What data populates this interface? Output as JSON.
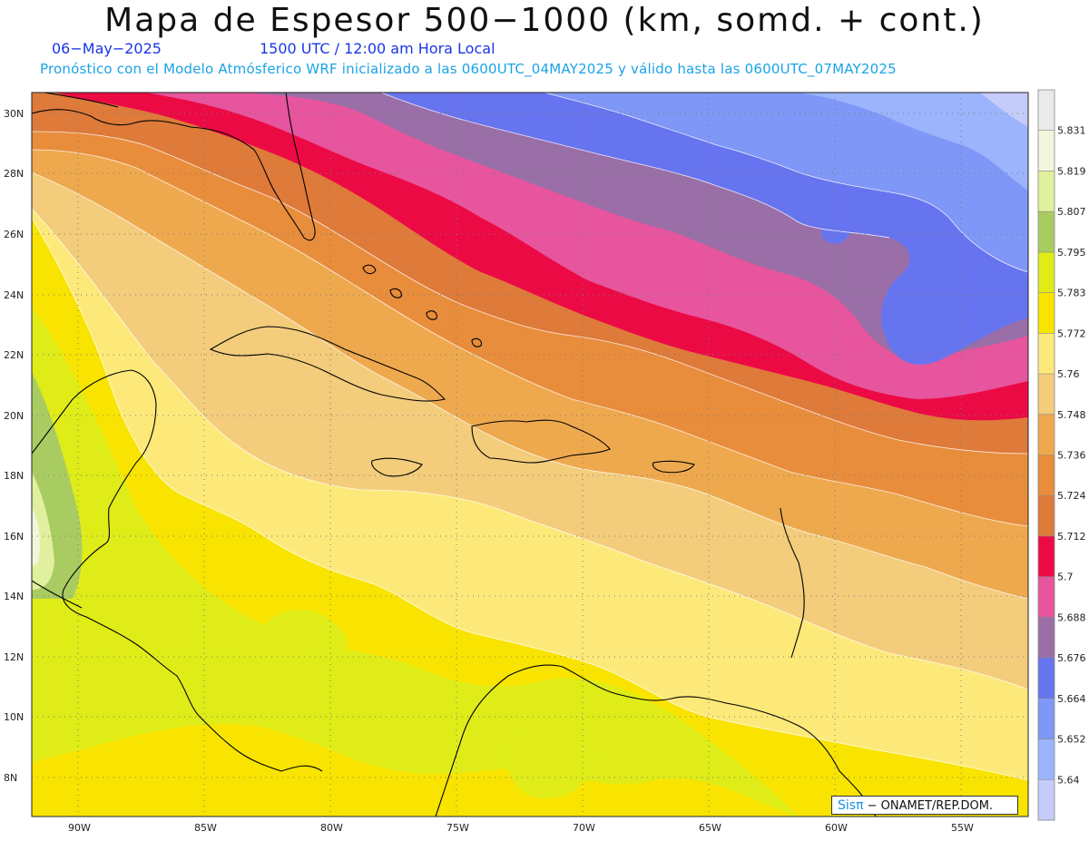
{
  "title": "Mapa de Espesor 500−1000 (km, somd. + cont.)",
  "date": "06−May−2025",
  "time": "1500 UTC / 12:00 am Hora Local",
  "model_info": "Pronóstico con el Modelo Atmósferico WRF inicializado a las 0600UTC_04MAY2025 y válido hasta las  0600UTC_07MAY2025",
  "credit": {
    "brand": "Sisπ",
    "org": "− ONAMET/REP.DOM."
  },
  "lat_labels": [
    "30N",
    "28N",
    "26N",
    "24N",
    "22N",
    "20N",
    "18N",
    "16N",
    "14N",
    "12N",
    "10N",
    "8N"
  ],
  "lon_labels": [
    "90W",
    "85W",
    "80W",
    "75W",
    "70W",
    "65W",
    "60W",
    "55W"
  ],
  "legend": {
    "labels": [
      "5.831",
      "5.819",
      "5.807",
      "5.795",
      "5.783",
      "5.772",
      "5.76",
      "5.748",
      "5.736",
      "5.724",
      "5.712",
      "5.7",
      "5.688",
      "5.676",
      "5.664",
      "5.652",
      "5.64"
    ],
    "colors": [
      "#eaeaea",
      "#f1f6dc",
      "#e0f09e",
      "#a9cc62",
      "#dfec18",
      "#f8e400",
      "#fde97a",
      "#f3cc7c",
      "#eea94e",
      "#e88d3c",
      "#de7a3a",
      "#ec0a45",
      "#e6559d",
      "#9a6fa8",
      "#6674f0",
      "#7f97f6",
      "#9bb4fb",
      "#c5ccfa"
    ]
  }
}
